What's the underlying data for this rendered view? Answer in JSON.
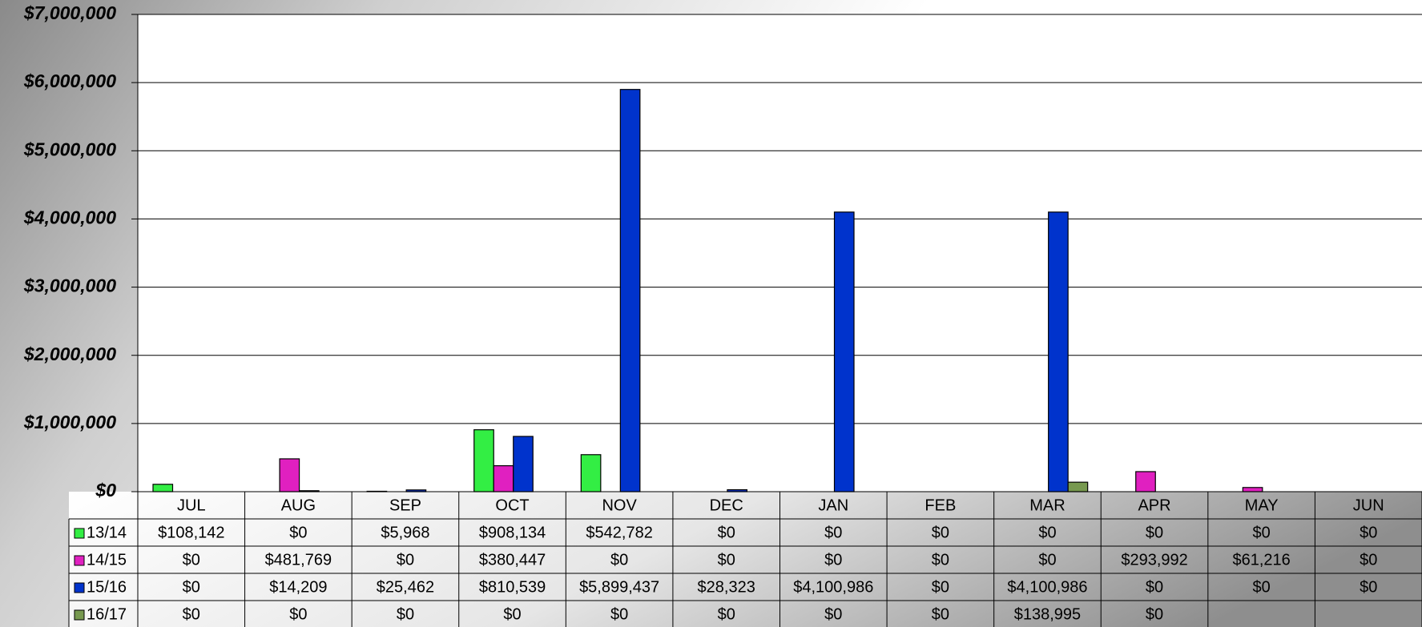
{
  "chart_data": {
    "type": "bar",
    "categories": [
      "JUL",
      "AUG",
      "SEP",
      "OCT",
      "NOV",
      "DEC",
      "JAN",
      "FEB",
      "MAR",
      "APR",
      "MAY",
      "JUN"
    ],
    "series": [
      {
        "name": "13/14",
        "color": "#33ee44",
        "values": [
          108142,
          0,
          5968,
          908134,
          542782,
          0,
          0,
          0,
          0,
          0,
          0,
          0
        ],
        "value_labels": [
          "$108,142",
          "$0",
          "$5,968",
          "$908,134",
          "$542,782",
          "$0",
          "$0",
          "$0",
          "$0",
          "$0",
          "$0",
          "$0"
        ]
      },
      {
        "name": "14/15",
        "color": "#e020c0",
        "values": [
          0,
          481769,
          0,
          380447,
          0,
          0,
          0,
          0,
          0,
          293992,
          61216,
          0
        ],
        "value_labels": [
          "$0",
          "$481,769",
          "$0",
          "$380,447",
          "$0",
          "$0",
          "$0",
          "$0",
          "$0",
          "$293,992",
          "$61,216",
          "$0"
        ]
      },
      {
        "name": "15/16",
        "color": "#0033cc",
        "values": [
          0,
          14209,
          25462,
          810539,
          5899437,
          28323,
          4100986,
          0,
          4100986,
          0,
          0,
          0
        ],
        "value_labels": [
          "$0",
          "$14,209",
          "$25,462",
          "$810,539",
          "$5,899,437",
          "$28,323",
          "$4,100,986",
          "$0",
          "$4,100,986",
          "$0",
          "$0",
          "$0"
        ]
      },
      {
        "name": "16/17",
        "color": "#77994f",
        "values": [
          0,
          0,
          0,
          0,
          0,
          0,
          0,
          0,
          138995,
          0,
          null,
          null
        ],
        "value_labels": [
          "$0",
          "$0",
          "$0",
          "$0",
          "$0",
          "$0",
          "$0",
          "$0",
          "$138,995",
          "$0",
          null,
          null
        ]
      }
    ],
    "ylim": [
      0,
      7000000
    ],
    "yticks": [
      {
        "value": 0,
        "label": "$0"
      },
      {
        "value": 1000000,
        "label": "$1,000,000"
      },
      {
        "value": 2000000,
        "label": "$2,000,000"
      },
      {
        "value": 3000000,
        "label": "$3,000,000"
      },
      {
        "value": 4000000,
        "label": "$4,000,000"
      },
      {
        "value": 5000000,
        "label": "$5,000,000"
      },
      {
        "value": 6000000,
        "label": "$6,000,000"
      },
      {
        "value": 7000000,
        "label": "$7,000,000"
      }
    ],
    "grid": true
  }
}
